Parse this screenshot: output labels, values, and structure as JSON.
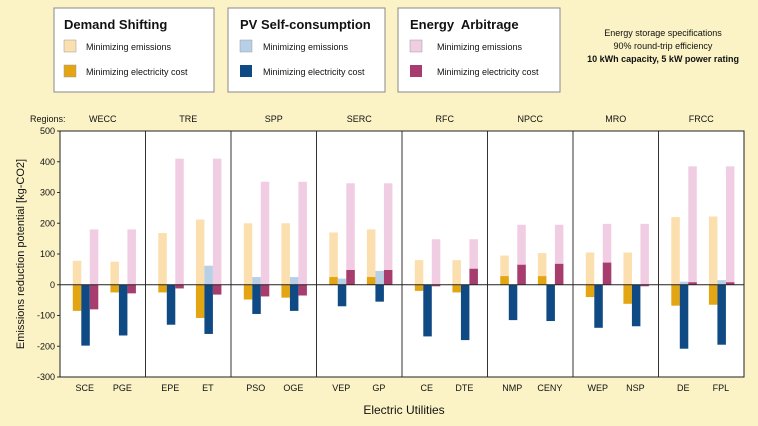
{
  "chart_data": {
    "type": "bar",
    "xlabel": "Electric Utilities",
    "ylabel": "Emissions reduction potential [kg-CO2]",
    "ylim": [
      -300,
      500
    ],
    "yticks": [
      500,
      400,
      300,
      200,
      100,
      0,
      -100,
      -200,
      -300
    ],
    "regions_label": "Regions:",
    "regions": [
      {
        "name": "WECC",
        "utilities": [
          "SCE",
          "PGE"
        ]
      },
      {
        "name": "TRE",
        "utilities": [
          "EPE",
          "ET"
        ]
      },
      {
        "name": "SPP",
        "utilities": [
          "PSO",
          "OGE"
        ]
      },
      {
        "name": "SERC",
        "utilities": [
          "VEP",
          "GP"
        ]
      },
      {
        "name": "RFC",
        "utilities": [
          "CE",
          "DTE"
        ]
      },
      {
        "name": "NPCC",
        "utilities": [
          "NMP",
          "CENY"
        ]
      },
      {
        "name": "MRO",
        "utilities": [
          "WEP",
          "NSP"
        ]
      },
      {
        "name": "FRCC",
        "utilities": [
          "DE",
          "FPL"
        ]
      }
    ],
    "categories": [
      "SCE",
      "PGE",
      "EPE",
      "ET",
      "PSO",
      "OGE",
      "VEP",
      "GP",
      "CE",
      "DTE",
      "NMP",
      "CENY",
      "WEP",
      "NSP",
      "DE",
      "FPL"
    ],
    "groups": [
      {
        "name": "Demand Shifting",
        "series": [
          {
            "name": "Minimizing emissions",
            "color": "#fbdfae",
            "values": [
              78,
              75,
              168,
              212,
              200,
              200,
              170,
              180,
              80,
              80,
              95,
              103,
              105,
              105,
              220,
              222
            ]
          },
          {
            "name": "Minimizing electricity cost",
            "color": "#e4a512",
            "values": [
              -85,
              -25,
              -25,
              -108,
              -48,
              -42,
              25,
              25,
              -20,
              -25,
              28,
              28,
              -40,
              -62,
              -68,
              -65
            ]
          }
        ]
      },
      {
        "name": "PV Self-consumption",
        "series": [
          {
            "name": "Minimizing emissions",
            "color": "#b7d0e7",
            "values": [
              0,
              0,
              0,
              62,
              25,
              25,
              20,
              45,
              0,
              0,
              0,
              0,
              0,
              0,
              10,
              15
            ]
          },
          {
            "name": "Minimizing electricity cost",
            "color": "#0f4a84",
            "values": [
              -198,
              -165,
              -130,
              -160,
              -95,
              -85,
              -70,
              -55,
              -168,
              -180,
              -115,
              -118,
              -140,
              -135,
              -208,
              -195
            ]
          }
        ]
      },
      {
        "name": "Energy  Arbitrage",
        "series": [
          {
            "name": "Minimizing emissions",
            "color": "#f1cde3",
            "values": [
              180,
              180,
              410,
              410,
              335,
              335,
              330,
              330,
              148,
              148,
              195,
              195,
              198,
              198,
              385,
              385
            ]
          },
          {
            "name": "Minimizing electricity cost",
            "color": "#a63d6e",
            "values": [
              -80,
              -28,
              -12,
              -32,
              -38,
              -35,
              48,
              48,
              -5,
              52,
              65,
              68,
              72,
              -5,
              8,
              8
            ]
          }
        ]
      }
    ],
    "spec_lines": [
      "Energy storage specifications",
      "90% round-trip efficiency",
      "10 kWh capacity, 5 kW power rating"
    ]
  }
}
